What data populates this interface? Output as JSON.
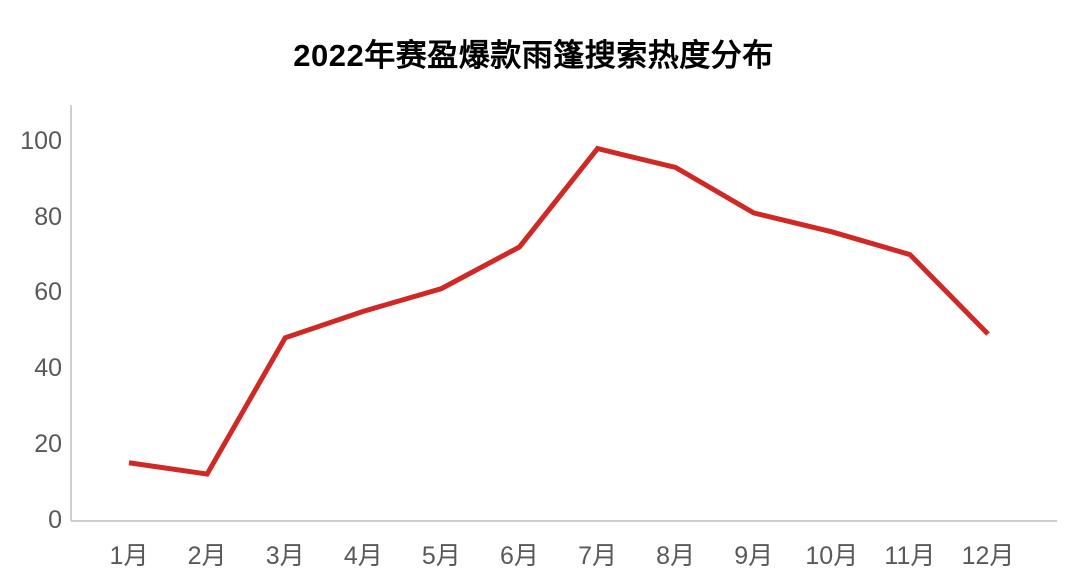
{
  "page": {
    "title": "2022年赛盈爆款雨篷搜索热度分布"
  },
  "chart_data": {
    "type": "line",
    "title": "2022年赛盈爆款雨篷搜索热度分布",
    "categories": [
      "1月",
      "2月",
      "3月",
      "4月",
      "5月",
      "6月",
      "7月",
      "8月",
      "9月",
      "10月",
      "11月",
      "12月"
    ],
    "values": [
      15,
      12,
      48,
      55,
      61,
      72,
      98,
      93,
      81,
      76,
      70,
      49
    ],
    "xlabel": "",
    "ylabel": "",
    "ylim": [
      0,
      100
    ],
    "yticks": [
      0,
      20,
      40,
      60,
      80,
      100
    ],
    "grid": false,
    "legend_position": "none",
    "colors": {
      "line": "#d02824",
      "axis": "#bfbfbf",
      "tick_label": "#595959",
      "title": "#000000",
      "background": "#ffffff"
    }
  }
}
